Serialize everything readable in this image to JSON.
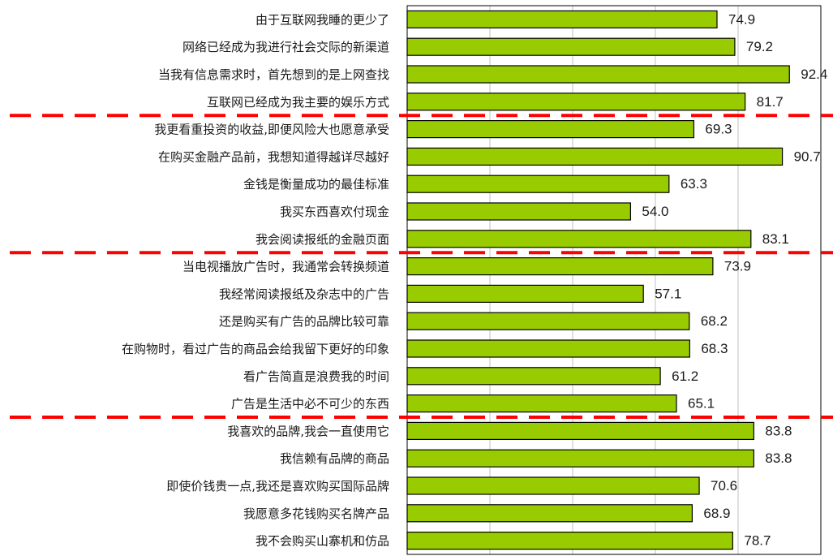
{
  "chart_data": {
    "type": "bar",
    "orientation": "horizontal",
    "title": "",
    "xlabel": "",
    "ylabel": "",
    "categories": [
      "由于互联网我睡的更少了",
      "网络已经成为我进行社会交际的新渠道",
      "当我有信息需求时，首先想到的是上网查找",
      "互联网已经成为我主要的娱乐方式",
      "我更看重投资的收益,即便风险大也愿意承受",
      "在购买金融产品前，我想知道得越详尽越好",
      "金钱是衡量成功的最佳标准",
      "我买东西喜欢付现金",
      "我会阅读报纸的金融页面",
      "当电视播放广告时，我通常会转换频道",
      "我经常阅读报纸及杂志中的广告",
      "还是购买有广告的品牌比较可靠",
      "在购物时，看过广告的商品会给我留下更好的印象",
      "看广告简直是浪费我的时间",
      "广告是生活中必不可少的东西",
      "我喜欢的品牌,我会一直使用它",
      "我信赖有品牌的商品",
      "即使价钱贵一点,我还是喜欢购买国际品牌",
      "我愿意多花钱购买名牌产品",
      "我不会购买山寨机和仿品"
    ],
    "values": [
      74.9,
      79.2,
      92.4,
      81.7,
      69.3,
      90.7,
      63.3,
      54.0,
      83.1,
      73.9,
      57.1,
      68.2,
      68.3,
      61.2,
      65.1,
      83.8,
      83.8,
      70.6,
      68.9,
      78.7
    ],
    "value_labels": [
      "74.9",
      "79.2",
      "92.4",
      "81.7",
      "69.3",
      "90.7",
      "63.3",
      "54.0",
      "83.1",
      "73.9",
      "57.1",
      "68.2",
      "68.3",
      "61.2",
      "65.1",
      "83.8",
      "83.8",
      "70.6",
      "68.9",
      "78.7"
    ],
    "xlim": [
      0,
      100
    ],
    "grid": true,
    "group_separators_after_index": [
      3,
      8,
      14
    ],
    "colors": {
      "bar_fill": "#99cc00",
      "bar_stroke": "#000000",
      "separator": "#ff0000",
      "gridline": "#c0c0c0"
    }
  }
}
